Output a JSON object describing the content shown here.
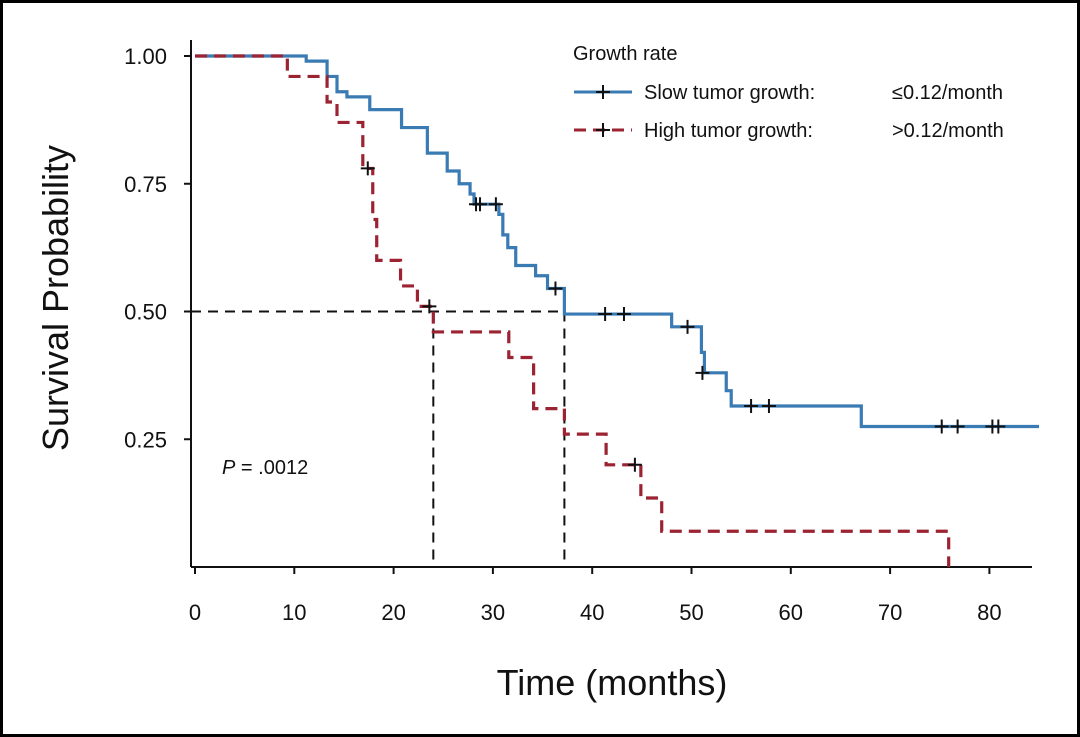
{
  "chart_data": {
    "type": "line",
    "xlabel": "Time (months)",
    "ylabel": "Survival Probability",
    "xlim": [
      0,
      85
    ],
    "ylim": [
      0.0,
      1.05
    ],
    "x_ticks": [
      "0",
      "10",
      "20",
      "30",
      "40",
      "50",
      "60",
      "70",
      "80"
    ],
    "y_ticks": [
      "1.00",
      "0.75",
      "0.50",
      "0.25"
    ],
    "grid": false,
    "legend": {
      "title": "Growth rate",
      "placement": "top-right",
      "entries": [
        {
          "name": "Slow tumor growth:",
          "value": "≤0.12/month"
        },
        {
          "name": "High tumor growth:",
          "value": ">0.12/month"
        }
      ]
    },
    "annotation": {
      "p_label": "P",
      "p_value": " = .0012"
    },
    "median_line": {
      "y": 0.5,
      "x": [
        24,
        37.2
      ]
    },
    "colors": {
      "slow": "#3a7bb4",
      "high": "#9b2332"
    },
    "series": [
      {
        "name": "Slow tumor growth:",
        "style": "solid",
        "steps": [
          [
            0,
            1.0
          ],
          [
            11.2,
            0.99
          ],
          [
            13.3,
            0.96
          ],
          [
            14.3,
            0.93
          ],
          [
            15.3,
            0.92
          ],
          [
            17.6,
            0.895
          ],
          [
            20.8,
            0.86
          ],
          [
            23.4,
            0.81
          ],
          [
            25.4,
            0.775
          ],
          [
            26.6,
            0.75
          ],
          [
            27.7,
            0.73
          ],
          [
            28.1,
            0.71
          ],
          [
            30.6,
            0.69
          ],
          [
            31.0,
            0.65
          ],
          [
            31.5,
            0.625
          ],
          [
            32.3,
            0.59
          ],
          [
            34.3,
            0.57
          ],
          [
            35.5,
            0.545
          ],
          [
            37.2,
            0.495
          ],
          [
            48.0,
            0.47
          ],
          [
            51.0,
            0.42
          ],
          [
            51.3,
            0.38
          ],
          [
            53.5,
            0.345
          ],
          [
            54.0,
            0.315
          ],
          [
            67.1,
            0.275
          ],
          [
            85.0,
            0.275
          ]
        ],
        "censored": [
          [
            28.3,
            0.71
          ],
          [
            28.7,
            0.71
          ],
          [
            30.3,
            0.71
          ],
          [
            36.3,
            0.545
          ],
          [
            41.3,
            0.495
          ],
          [
            43.2,
            0.495
          ],
          [
            49.6,
            0.47
          ],
          [
            51.1,
            0.38
          ],
          [
            56.0,
            0.315
          ],
          [
            57.8,
            0.315
          ],
          [
            75.2,
            0.275
          ],
          [
            76.8,
            0.275
          ],
          [
            80.3,
            0.275
          ],
          [
            80.9,
            0.275
          ]
        ]
      },
      {
        "name": "High tumor growth:",
        "style": "dashed",
        "steps": [
          [
            0,
            1.0
          ],
          [
            9.3,
            0.96
          ],
          [
            13.3,
            0.91
          ],
          [
            14.3,
            0.87
          ],
          [
            16.9,
            0.78
          ],
          [
            17.9,
            0.68
          ],
          [
            18.3,
            0.6
          ],
          [
            20.7,
            0.55
          ],
          [
            22.4,
            0.51
          ],
          [
            24.0,
            0.46
          ],
          [
            31.6,
            0.41
          ],
          [
            34.1,
            0.31
          ],
          [
            37.2,
            0.26
          ],
          [
            41.4,
            0.2
          ],
          [
            44.9,
            0.135
          ],
          [
            47.0,
            0.07
          ],
          [
            75.9,
            0.0
          ]
        ],
        "censored": [
          [
            17.4,
            0.78
          ],
          [
            23.6,
            0.51
          ],
          [
            44.3,
            0.2
          ]
        ]
      }
    ]
  }
}
